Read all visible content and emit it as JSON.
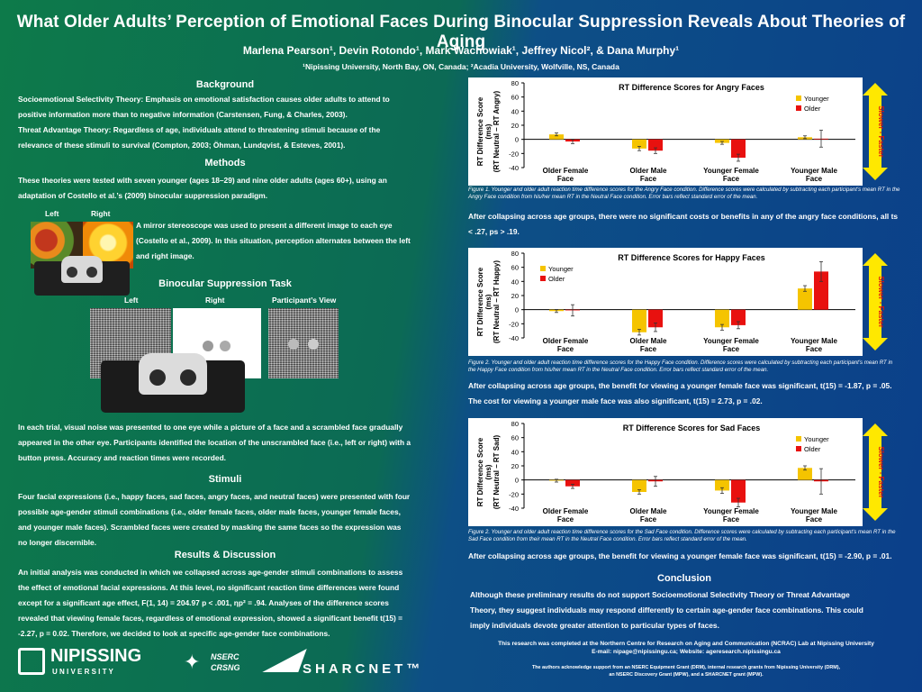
{
  "title": "What Older Adults’ Perception of Emotional Faces During Binocular Suppression Reveals About Theories of Aging",
  "authors": "Marlena Pearson¹, Devin Rotondo¹, Mark Wachowiak¹, Jeffrey Nicol², & Dana Murphy¹",
  "affiliations": "¹Nipissing University, North Bay, ON, Canada; ²Acadia University, Wolfville, NS, Canada",
  "background": {
    "heading": "Background",
    "lines": [
      "Socioemotional Selectivity Theory: Emphasis on emotional satisfaction causes older adults to attend to",
      "positive information more than to negative information (Carstensen, Fung, & Charles, 2003).",
      "Threat Advantage Theory: Regardless of age, individuals attend to threatening stimuli because of the",
      "relevance of these stimuli to survival (Compton, 2003; Öhman, Lundqvist, & Esteves, 2001)."
    ]
  },
  "methods": {
    "heading": "Methods",
    "lines": [
      "These theories were tested with seven younger (ages 18–29) and nine older adults (ages 60+), using an",
      "adaptation of Costello et al.’s (2009) binocular suppression paradigm."
    ],
    "img_left": "Left",
    "img_right": "Right",
    "mirror_lines": [
      "A mirror stereoscope was used to present a different image to each eye",
      "(Costello et al., 2009).  In this situation, perception alternates between  the left",
      "and right image."
    ],
    "task_heading": "Binocular Suppression Task",
    "task_left": "Left",
    "task_right": "Right",
    "task_view": "Participant’s View",
    "trial_lines": [
      "In each trial, visual noise was presented to one eye while a picture of a face and a scrambled face gradually",
      "appeared in the other eye.  Participants identified the location of the unscrambled face (i.e., left or right) with a",
      "button press.  Accuracy and reaction times were recorded."
    ]
  },
  "stimuli": {
    "heading": "Stimuli",
    "lines": [
      "Four facial expressions (i.e., happy faces, sad faces, angry faces, and neutral faces) were presented with four",
      "possible age-gender stimuli combinations (i.e., older female faces, older male faces, younger female faces,",
      "and younger male faces).  Scrambled faces were created by masking the same faces so the expression was",
      "no longer discernible."
    ]
  },
  "results": {
    "heading": "Results & Discussion",
    "lines": [
      "An initial analysis was conducted in which we collapsed across age-gender stimuli combinations to assess",
      "the effect of emotional facial expressions.  At this level, no significant reaction time differences were found",
      "except for a significant age effect, F(1, 14) = 204.97 p < .001, ηp² = .94.  Analyses of the difference scores",
      "revealed that viewing female faces, regardless of emotional expression, showed a significant benefit t(15) =",
      "-2.27, p = 0.02.  Therefore, we decided to look at specific age-gender face combinations."
    ]
  },
  "charts_text": {
    "ylabel1": "RT Difference Score",
    "ylabel2": "(ms)",
    "arrow_label": "Slower  -  Faster"
  },
  "chart_data": [
    {
      "type": "bar",
      "title": "RT Difference Scores for Angry Faces",
      "ylabel_sub": "(RT Neutral – RT Angry)",
      "categories": [
        "Older Female Face",
        "Older Male Face",
        "Younger Female Face",
        "Younger Male Face"
      ],
      "series": [
        {
          "name": "Younger",
          "values": [
            7,
            -13,
            -5,
            3
          ],
          "errors": [
            2,
            3,
            2,
            2
          ]
        },
        {
          "name": "Older",
          "values": [
            -3,
            -16,
            -26,
            1
          ],
          "errors": [
            3,
            4,
            5,
            12
          ]
        }
      ],
      "ylim": [
        -40,
        80
      ],
      "yticks": [
        -40,
        -20,
        0,
        20,
        40,
        60,
        80
      ],
      "legend": "top-right"
    },
    {
      "type": "bar",
      "title": "RT Difference Scores for Happy Faces",
      "ylabel_sub": "(RT Neutral – RT Happy)",
      "categories": [
        "Older Female Face",
        "Older Male Face",
        "Younger Female Face",
        "Younger Male Face"
      ],
      "series": [
        {
          "name": "Younger",
          "values": [
            -2,
            -32,
            -25,
            30
          ],
          "errors": [
            2,
            4,
            4,
            4
          ]
        },
        {
          "name": "Older",
          "values": [
            -1,
            -25,
            -22,
            54
          ],
          "errors": [
            8,
            6,
            5,
            14
          ]
        }
      ],
      "ylim": [
        -40,
        80
      ],
      "yticks": [
        -40,
        -20,
        0,
        20,
        40,
        60,
        80
      ],
      "legend": "top-left"
    },
    {
      "type": "bar",
      "title": "RT Difference Scores for Sad Faces",
      "ylabel_sub": "(RT Neutral – RT Sad)",
      "categories": [
        "Older Female Face",
        "Older Male Face",
        "Younger Female Face",
        "Younger Male Face"
      ],
      "series": [
        {
          "name": "Younger",
          "values": [
            -1,
            -17,
            -15,
            17
          ],
          "errors": [
            2,
            3,
            4,
            3
          ]
        },
        {
          "name": "Older",
          "values": [
            -9,
            -2,
            -32,
            -2
          ],
          "errors": [
            3,
            7,
            6,
            18
          ]
        }
      ],
      "ylim": [
        -40,
        80
      ],
      "yticks": [
        -40,
        -20,
        0,
        20,
        40,
        60,
        80
      ],
      "legend": "top-right"
    }
  ],
  "colors": {
    "younger": "#f5c400",
    "older": "#e8110f",
    "arrow": "#ffe800"
  },
  "captions": [
    {
      "figure": "Figure 1.",
      "text": " Younger and older adult reaction time difference scores for the Angry Face condition.  Difference scores were calculated by subtracting each participant’s mean RT in the Angry Face condition from his/her mean RT in the Neutral Face condition.  Error bars reflect standard error of the mean.",
      "finding": "After collapsing across age groups, there were no significant costs or benefits in any of the angry face conditions, all ts < .27, ps > .19."
    },
    {
      "figure": "Figure 2.",
      "text": " Younger and older adult reaction time difference scores for the Happy Face condition.  Difference scores were calculated by subtracting each participant’s mean RT in the Happy Face condition from his/her mean RT in the Neutral Face condition.  Error bars reflect standard error of the mean.",
      "finding": "After collapsing across age groups, the benefit for viewing a younger female face was significant, t(15) = -1.87, p = .05. The cost for viewing a younger male face was also significant, t(15) = 2.73, p = .02."
    },
    {
      "figure": "Figure 2.",
      "text": " Younger and older adult reaction time difference scores for the Sad Face condition.  Difference scores were calculated by subtracting each participant’s mean RT in the Sad Face condition from their mean RT in the Neutral Face condition.  Error bars reflect standard error of the mean.",
      "finding": "After collapsing across age groups, the benefit for viewing a younger female face was significant, t(15) = -2.90, p = .01."
    }
  ],
  "conclusion": {
    "heading": "Conclusion",
    "lines": [
      "Although these preliminary results do not support Socioemotional Selectivity Theory or Threat Advantage",
      "Theory, they suggest individuals may respond differently to certain age-gender face combinations.  This could",
      "imply individuals devote greater attention to particular types of faces."
    ]
  },
  "footer": {
    "line1": "This research was completed at the Northern Centre for Research on Aging and Communication (NCRAC) Lab at Nipissing University",
    "line2": "E-mail:  nipage@nipissingu.ca;  Website:  ageresearch.nipissingu.ca",
    "ack1": "The authors acknowledge support from an NSERC Equipment Grant (DRM), internal research grants from Nipissing University (DRM),",
    "ack2": "an NSERC Discovery Grant (MPW), and a SHARCNET grant (MPW)."
  },
  "logos": {
    "nipissing": "NIPISSING",
    "nipissing_sub": "U N I V E R S I T Y",
    "nserc1": "NSERC",
    "nserc2": "CRSNG",
    "sharcnet": "SHARCNET™"
  }
}
